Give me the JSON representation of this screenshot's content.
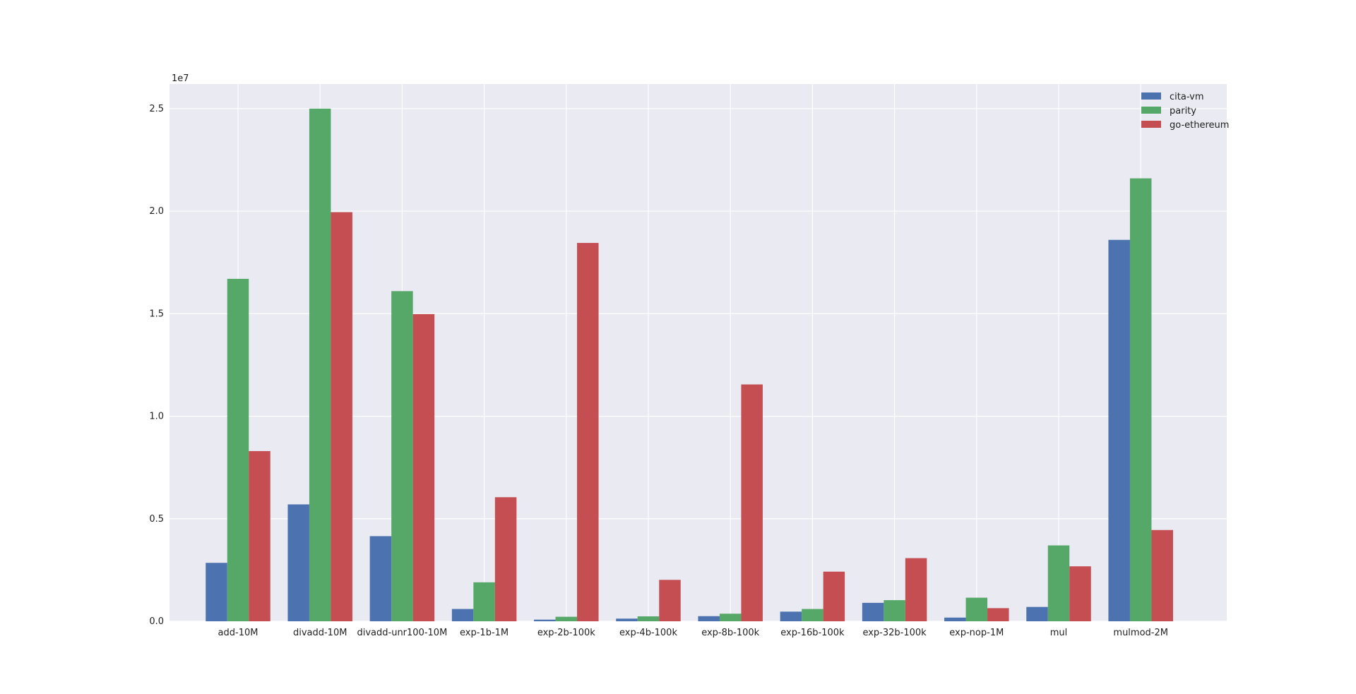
{
  "chart_data": {
    "type": "bar",
    "title": "",
    "xlabel": "",
    "ylabel": "",
    "y_scale_label": "1e7",
    "ylim": [
      0,
      26200000
    ],
    "yticks": [
      0,
      5000000,
      10000000,
      15000000,
      20000000,
      25000000
    ],
    "ytick_labels": [
      "0.0",
      "0.5",
      "1.0",
      "1.5",
      "2.0",
      "2.5"
    ],
    "grid": true,
    "background_color": "#eaeaf2",
    "legend_placement": "top-right",
    "categories": [
      "add-10M",
      "divadd-10M",
      "divadd-unr100-10M",
      "exp-1b-1M",
      "exp-2b-100k",
      "exp-4b-100k",
      "exp-8b-100k",
      "exp-16b-100k",
      "exp-32b-100k",
      "exp-nop-1M",
      "mul",
      "mulmod-2M"
    ],
    "series": [
      {
        "name": "cita-vm",
        "color": "#4c72b0",
        "values": [
          2850000,
          5700000,
          4150000,
          600000,
          80000,
          130000,
          250000,
          470000,
          900000,
          180000,
          700000,
          18600000
        ]
      },
      {
        "name": "parity",
        "color": "#55a868",
        "values": [
          16700000,
          25000000,
          16100000,
          1900000,
          220000,
          240000,
          370000,
          600000,
          1030000,
          1150000,
          3700000,
          21600000
        ]
      },
      {
        "name": "go-ethereum",
        "color": "#c44e52",
        "values": [
          8300000,
          19950000,
          14980000,
          6050000,
          18450000,
          2020000,
          11550000,
          2420000,
          3080000,
          640000,
          2680000,
          4450000
        ]
      }
    ]
  }
}
